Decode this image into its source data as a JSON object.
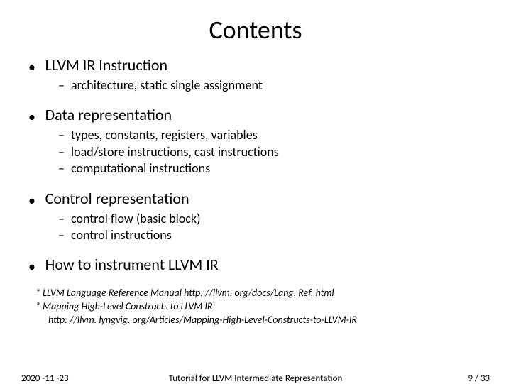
{
  "title": "Contents",
  "sections": [
    {
      "heading": "LLVM IR Instruction",
      "items": [
        "architecture, static single assignment"
      ]
    },
    {
      "heading": "Data representation",
      "items": [
        "types, constants, registers, variables",
        "load/store instructions, cast instructions",
        "computational instructions"
      ]
    },
    {
      "heading": "Control representation",
      "items": [
        "control flow (basic block)",
        "control instructions"
      ]
    },
    {
      "heading": "How to instrument LLVM IR",
      "items": []
    }
  ],
  "refs": [
    "* LLVM Language Reference Manual  http: //llvm. org/docs/Lang. Ref. html",
    "* Mapping High-Level Constructs to LLVM IR",
    "   http: //llvm. lyngvig. org/Articles/Mapping-High-Level-Constructs-to-LLVM-IR"
  ],
  "footer": {
    "date": "2020 -11 -23",
    "title": "Tutorial for LLVM Intermediate Representation",
    "page_current": "9",
    "page_total": "33",
    "page_sep": " / "
  },
  "style": {
    "title_fontsize": 36,
    "section_fontsize": 22,
    "sub_fontsize": 18,
    "ref_fontsize": 14,
    "footer_fontsize": 13,
    "text_color": "#000000",
    "background_color": "#ffffff"
  }
}
